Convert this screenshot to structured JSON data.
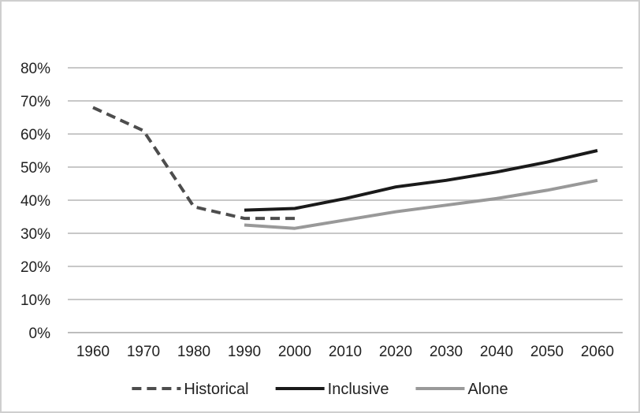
{
  "chart_data": {
    "type": "line",
    "x": [
      "1960",
      "1970",
      "1980",
      "1990",
      "2000",
      "2010",
      "2020",
      "2030",
      "2040",
      "2050",
      "2060"
    ],
    "y_ticks": [
      "0%",
      "10%",
      "20%",
      "30%",
      "40%",
      "50%",
      "60%",
      "70%",
      "80%"
    ],
    "ylim": [
      0,
      80
    ],
    "grid": true,
    "legend_position": "bottom",
    "series": [
      {
        "name": "Historical",
        "style": "dashed",
        "color": "#4d4d4d",
        "values": [
          68,
          61,
          38,
          34.5,
          34.5,
          null,
          null,
          null,
          null,
          null,
          null
        ]
      },
      {
        "name": "Inclusive",
        "style": "solid",
        "color": "#1a1a1a",
        "values": [
          null,
          null,
          null,
          37,
          37.5,
          40.5,
          44,
          46,
          48.5,
          51.5,
          55
        ]
      },
      {
        "name": "Alone",
        "style": "solid",
        "color": "#999999",
        "values": [
          null,
          null,
          null,
          32.5,
          31.5,
          34,
          36.5,
          38.5,
          40.5,
          43,
          46
        ]
      }
    ]
  }
}
